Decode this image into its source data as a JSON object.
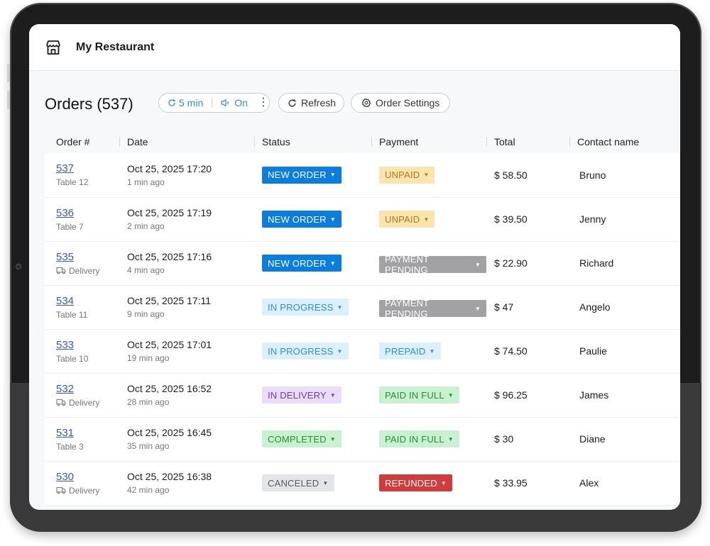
{
  "app": {
    "title": "My Restaurant",
    "store_icon": "store-icon"
  },
  "toolbar": {
    "orders_title": "Orders (537)",
    "timer_label": "5 min",
    "sound_label": "On",
    "refresh_label": "Refresh",
    "settings_label": "Order Settings"
  },
  "table": {
    "headers": [
      "Order #",
      "Date",
      "Status",
      "Payment",
      "Total",
      "Contact name"
    ],
    "rows": [
      {
        "order": "537",
        "sub": "Table 12",
        "sub_icon": "",
        "date": "Oct 25, 2025 17:20",
        "ago": "1 min ago",
        "status": "NEW ORDER",
        "status_style": "new",
        "payment": "UNPAID",
        "payment_style": "unpaid",
        "total": "$ 58.50",
        "contact": "Bruno"
      },
      {
        "order": "536",
        "sub": "Table 7",
        "sub_icon": "",
        "date": "Oct 25, 2025 17:19",
        "ago": "2 min ago",
        "status": "NEW ORDER",
        "status_style": "new",
        "payment": "UNPAID",
        "payment_style": "unpaid",
        "total": "$ 39.50",
        "contact": "Jenny"
      },
      {
        "order": "535",
        "sub": "Delivery",
        "sub_icon": "truck-icon",
        "date": "Oct 25, 2025 17:16",
        "ago": "4 min ago",
        "status": "NEW ORDER",
        "status_style": "new",
        "payment": "PAYMENT PENDING",
        "payment_style": "pending",
        "total": "$ 22.90",
        "contact": "Richard"
      },
      {
        "order": "534",
        "sub": "Table 11",
        "sub_icon": "",
        "date": "Oct 25, 2025 17:11",
        "ago": "9 min ago",
        "status": "IN PROGRESS",
        "status_style": "progress",
        "payment": "PAYMENT PENDING",
        "payment_style": "pending",
        "total": "$ 47",
        "contact": "Angelo"
      },
      {
        "order": "533",
        "sub": "Table 10",
        "sub_icon": "",
        "date": "Oct 25, 2025 17:01",
        "ago": "19 min ago",
        "status": "IN PROGRESS",
        "status_style": "progress",
        "payment": "PREPAID",
        "payment_style": "prepaid",
        "total": "$ 74.50",
        "contact": "Paulie"
      },
      {
        "order": "532",
        "sub": "Delivery",
        "sub_icon": "truck-icon",
        "date": "Oct 25, 2025 16:52",
        "ago": "28 min ago",
        "status": "IN DELIVERY",
        "status_style": "delivery",
        "payment": "PAID IN FULL",
        "payment_style": "paid",
        "total": "$ 96.25",
        "contact": "James"
      },
      {
        "order": "531",
        "sub": "Table 3",
        "sub_icon": "",
        "date": "Oct 25, 2025 16:45",
        "ago": "35 min ago",
        "status": "COMPLETED",
        "status_style": "completed",
        "payment": "PAID IN FULL",
        "payment_style": "paid",
        "total": "$ 30",
        "contact": "Diane"
      },
      {
        "order": "530",
        "sub": "Delivery",
        "sub_icon": "truck-icon",
        "date": "Oct 25, 2025 16:38",
        "ago": "42 min ago",
        "status": "CANCELED",
        "status_style": "canceled",
        "payment": "REFUNDED",
        "payment_style": "refunded",
        "total": "$ 33.95",
        "contact": "Alex"
      }
    ]
  },
  "badge_colors": {
    "new": {
      "bg": "#0a7ee0",
      "fg": "#ffffff"
    },
    "progress": {
      "bg": "#dcefff",
      "fg": "#2a8fe2"
    },
    "delivery": {
      "bg": "#ebdcfb",
      "fg": "#6b3ea8"
    },
    "completed": {
      "bg": "#c8f1cf",
      "fg": "#2c8a3e"
    },
    "canceled": {
      "bg": "#e4e5e8",
      "fg": "#555a60"
    },
    "unpaid": {
      "bg": "#fbe4ae",
      "fg": "#b07a12"
    },
    "pending": {
      "bg": "#a2a2a4",
      "fg": "#ffffff"
    },
    "prepaid": {
      "bg": "#dcefff",
      "fg": "#2a8fe2"
    },
    "paid": {
      "bg": "#c8f1cf",
      "fg": "#2c8a3e"
    },
    "refunded": {
      "bg": "#d13b3b",
      "fg": "#ffffff"
    }
  }
}
